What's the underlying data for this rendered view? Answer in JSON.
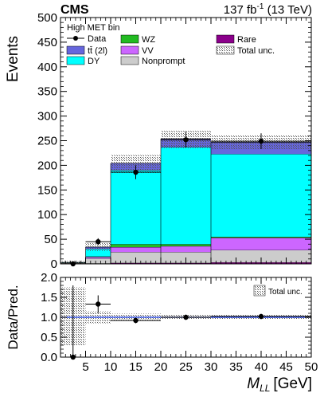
{
  "header": {
    "experiment": "CMS",
    "lumi_prefix": "137 fb",
    "lumi_exp": "-1",
    "lumi_suffix": " (13 TeV)"
  },
  "chart_data": [
    {
      "type": "bar",
      "subtype": "stacked-histogram",
      "region_label": "High MET bin",
      "ylabel": "Events",
      "xlabel_main": "M",
      "xlabel_sub": "LL",
      "xlabel_unit": "[GeV]",
      "bin_edges": [
        0,
        5,
        10,
        20,
        30,
        50
      ],
      "xlim": [
        0,
        50
      ],
      "ylim": [
        0,
        500
      ],
      "xticks": [
        5,
        10,
        15,
        20,
        25,
        30,
        35,
        40,
        45,
        50
      ],
      "yticks": [
        0,
        50,
        100,
        150,
        200,
        250,
        300,
        350,
        400,
        450,
        500
      ],
      "colors": {
        "Rare": "#8b008b",
        "Nonprompt": "#cccccc",
        "VV": "#cc66ff",
        "WZ": "#22bb22",
        "DY": "#00ffff",
        "tt": "#6666dd",
        "band": "#999999"
      },
      "series": [
        {
          "name": "Rare",
          "key": "Rare",
          "values": [
            0.3,
            1,
            2,
            2,
            3
          ]
        },
        {
          "name": "Nonprompt",
          "key": "Nonprompt",
          "values": [
            1.5,
            10,
            22,
            22,
            25
          ]
        },
        {
          "name": "VV",
          "key": "VV",
          "values": [
            0.2,
            3,
            10,
            12,
            25
          ]
        },
        {
          "name": "WZ",
          "key": "WZ",
          "values": [
            0.2,
            1,
            6,
            4,
            2
          ]
        },
        {
          "name": "DY",
          "key": "DY",
          "values": [
            0.5,
            15,
            150,
            197,
            168
          ]
        },
        {
          "name": "tt̄ (2l)",
          "key": "tt",
          "values": [
            0.3,
            4,
            14,
            17,
            24
          ]
        }
      ],
      "total_unc": [
        {
          "low": 0.2,
          "high": 5.8
        },
        {
          "low": 26,
          "high": 42
        },
        {
          "low": 183,
          "high": 221
        },
        {
          "low": 235,
          "high": 270
        },
        {
          "low": 232,
          "high": 262
        }
      ],
      "data": [
        {
          "x": 2.5,
          "y": 0,
          "yerr": 1.8,
          "xerr": 2.5
        },
        {
          "x": 7.5,
          "y": 45,
          "yerr": 7,
          "xerr": 2.5
        },
        {
          "x": 15,
          "y": 186,
          "yerr": 14,
          "xerr": 5
        },
        {
          "x": 25,
          "y": 252,
          "yerr": 16,
          "xerr": 5
        },
        {
          "x": 40,
          "y": 249,
          "yerr": 16,
          "xerr": 10
        }
      ],
      "legend": {
        "col1": [
          "Data",
          "tt̄ (2l)",
          "DY"
        ],
        "col2": [
          "WZ",
          "VV",
          "Nonprompt"
        ],
        "col3": [
          "Rare",
          "Total unc."
        ]
      }
    },
    {
      "type": "scatter",
      "subtype": "ratio",
      "ylabel": "Data/Pred.",
      "ylim": [
        0,
        2
      ],
      "yticks": [
        0.0,
        0.5,
        1.0,
        1.5,
        2.0
      ],
      "reference_line": 1.0,
      "band": [
        {
          "low": 0.3,
          "high": 1.75
        },
        {
          "low": 0.85,
          "high": 1.15
        },
        {
          "low": 0.91,
          "high": 1.09
        },
        {
          "low": 0.94,
          "high": 1.06
        },
        {
          "low": 0.94,
          "high": 1.06
        }
      ],
      "points": [
        {
          "x": 2.5,
          "y": 0.0,
          "yerr": 1.8,
          "xerr": 2.5
        },
        {
          "x": 7.5,
          "y": 1.33,
          "yerr": 0.22,
          "xerr": 2.5
        },
        {
          "x": 15,
          "y": 0.92,
          "yerr": 0.07,
          "xerr": 5
        },
        {
          "x": 25,
          "y": 1.0,
          "yerr": 0.065,
          "xerr": 5
        },
        {
          "x": 40,
          "y": 1.02,
          "yerr": 0.065,
          "xerr": 10
        }
      ],
      "legend": [
        "Total unc."
      ]
    }
  ]
}
